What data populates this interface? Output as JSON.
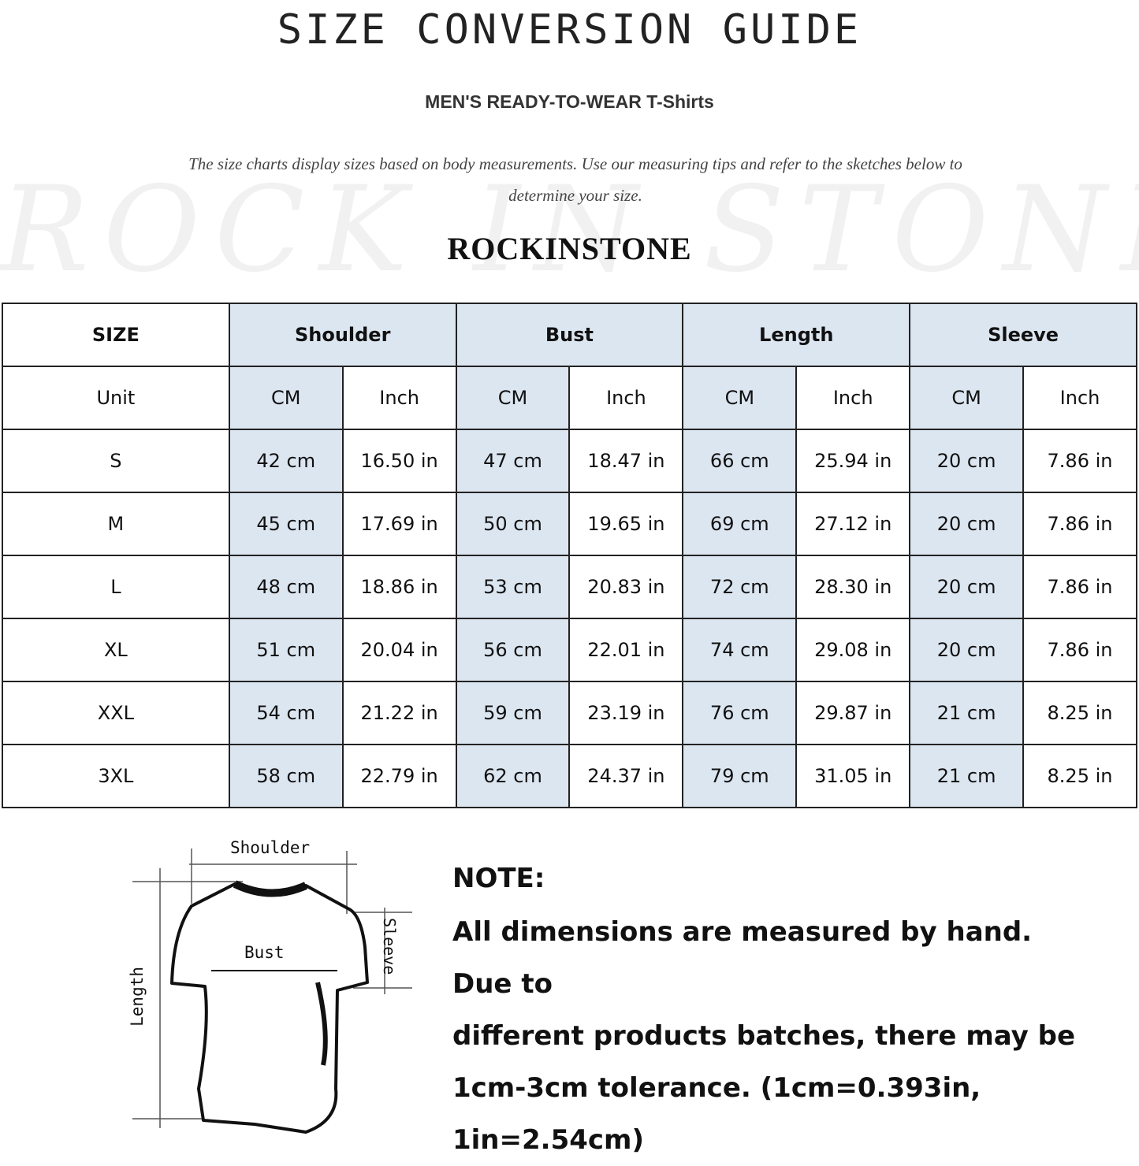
{
  "title": "SIZE CONVERSION GUIDE",
  "subtitle": "MEN'S READY-TO-WEAR T-Shirts",
  "description": "The size charts display sizes based on body measurements. Use our measuring tips and refer to the sketches below to determine your size.",
  "watermark": "ROCK IN STONE",
  "brand": "ROCKINSTONE",
  "colors": {
    "header_fill": "#dce6f1",
    "border": "#222222"
  },
  "table": {
    "size_label": "SIZE",
    "unit_label": "Unit",
    "groups": [
      "Shoulder",
      "Bust",
      "Length",
      "Sleeve"
    ],
    "units": [
      "CM",
      "Inch",
      "CM",
      "Inch",
      "CM",
      "Inch",
      "CM",
      "Inch"
    ],
    "rows": [
      {
        "size": "S",
        "values": [
          "42 cm",
          "16.50 in",
          "47 cm",
          "18.47  in",
          "66 cm",
          "25.94  in",
          "20 cm",
          "7.86  in"
        ]
      },
      {
        "size": "M",
        "values": [
          "45 cm",
          "17.69  in",
          "50 cm",
          "19.65  in",
          "69 cm",
          "27.12  in",
          "20 cm",
          "7.86  in"
        ]
      },
      {
        "size": "L",
        "values": [
          "48 cm",
          "18.86  in",
          "53 cm",
          "20.83  in",
          "72 cm",
          "28.30  in",
          "20 cm",
          "7.86  in"
        ]
      },
      {
        "size": "XL",
        "values": [
          "51 cm",
          "20.04  in",
          "56 cm",
          "22.01  in",
          "74 cm",
          "29.08  in",
          "20 cm",
          "7.86  in"
        ]
      },
      {
        "size": "XXL",
        "values": [
          "54 cm",
          "21.22  in",
          "59 cm",
          "23.19  in",
          "76 cm",
          "29.87  in",
          "21 cm",
          "8.25  in"
        ]
      },
      {
        "size": "3XL",
        "values": [
          "58 cm",
          "22.79  in",
          "62 cm",
          "24.37  in",
          "79 cm",
          "31.05  in",
          "21 cm",
          "8.25  in"
        ]
      }
    ]
  },
  "sketch": {
    "shoulder": "Shoulder",
    "bust": "Bust",
    "sleeve": "Sleeve",
    "length": "Length"
  },
  "note": {
    "heading": "NOTE:",
    "lines": [
      "All dimensions are measured by hand. Due to",
      "different products batches, there may be",
      "1cm-3cm tolerance. (1cm=0.393in, 1in=2.54cm)"
    ]
  }
}
